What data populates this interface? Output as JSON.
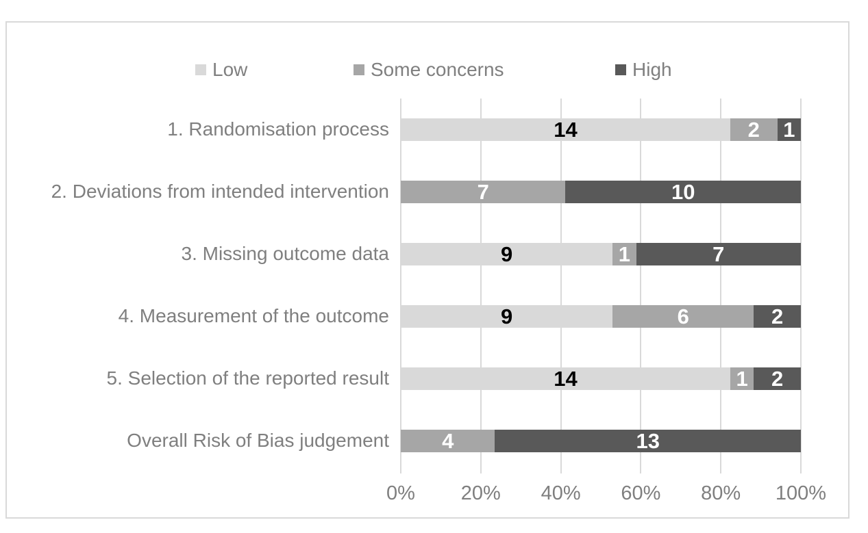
{
  "chart_data": {
    "type": "bar",
    "orientation": "horizontal",
    "stacked": true,
    "value_axis": "percent_of_row_total",
    "title": "",
    "categories": [
      "1. Randomisation process",
      "2. Deviations from intended intervention",
      "3. Missing outcome data",
      "4. Measurement of the outcome",
      "5. Selection of the reported result",
      "Overall Risk of Bias judgement"
    ],
    "series": [
      {
        "name": "Low",
        "color": "#D9D9D9",
        "label_color": "#000000",
        "values": [
          14,
          0,
          9,
          9,
          14,
          0
        ]
      },
      {
        "name": "Some concerns",
        "color": "#A6A6A6",
        "label_color": "#FFFFFF",
        "values": [
          2,
          7,
          1,
          6,
          1,
          4
        ]
      },
      {
        "name": "High",
        "color": "#595959",
        "label_color": "#FFFFFF",
        "values": [
          1,
          10,
          7,
          2,
          2,
          13
        ]
      }
    ],
    "row_totals": [
      17,
      17,
      17,
      17,
      17,
      17
    ],
    "x_axis": {
      "min": 0,
      "max": 100,
      "tick_labels": [
        "0%",
        "20%",
        "40%",
        "60%",
        "80%",
        "100%"
      ]
    },
    "legend": {
      "position": "top",
      "entries": [
        "Low",
        "Some concerns",
        "High"
      ]
    },
    "grid": true,
    "colors": {
      "gridline": "#D9D9D9",
      "frame_border": "#D9D9D9",
      "axis_text": "#7F7F7F",
      "background": "#FFFFFF"
    }
  }
}
